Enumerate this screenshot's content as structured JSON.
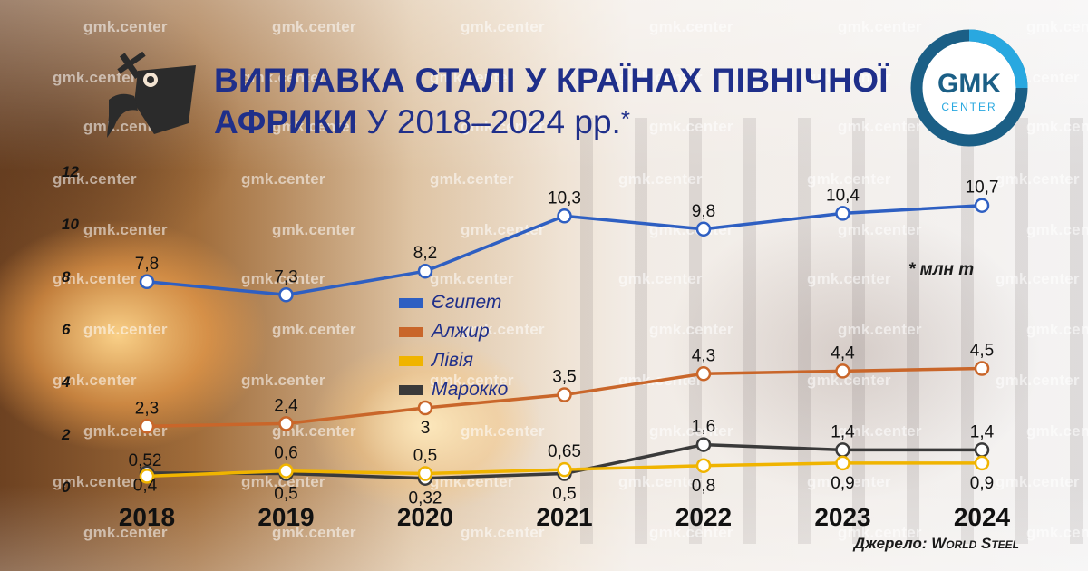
{
  "title": {
    "line1": "ВИПЛАВКА СТАЛІ У КРАЇНАХ ПІВНІЧНОЇ",
    "line2_bold": "АФРИКИ",
    "line2_rest": " У 2018–2024 рр.",
    "asterisk": "*"
  },
  "logo": {
    "top": "GMK",
    "bottom": "CENTER",
    "ring_color": "#1b5f86",
    "accent_color": "#29a8e0"
  },
  "watermark": "gmk.center",
  "unit_note": "* млн т",
  "source": {
    "prefix": "Джерело: ",
    "name": "World Steel"
  },
  "icon": "ladle-icon",
  "colors": {
    "title": "#1f2f8a",
    "egypt": "#2e5fc2",
    "algeria": "#c9662a",
    "libya": "#f0b400",
    "morocco": "#3a3a3a"
  },
  "chart_data": {
    "type": "line",
    "x": [
      "2018",
      "2019",
      "2020",
      "2021",
      "2022",
      "2023",
      "2024"
    ],
    "yticks": [
      "0",
      "2",
      "4",
      "6",
      "8",
      "10",
      "12"
    ],
    "ylim": [
      0,
      12
    ],
    "grid": false,
    "legend_position": "center",
    "series": [
      {
        "name": "Єгипет",
        "color": "#2e5fc2",
        "values": [
          7.8,
          7.3,
          8.2,
          10.3,
          9.8,
          10.4,
          10.7
        ],
        "labels": [
          "7,8",
          "7,3",
          "8,2",
          "10,3",
          "9,8",
          "10,4",
          "10,7"
        ],
        "pos": [
          "above",
          "above",
          "above",
          "above",
          "above",
          "above",
          "above"
        ]
      },
      {
        "name": "Алжир",
        "color": "#c9662a",
        "values": [
          2.3,
          2.4,
          3.0,
          3.5,
          4.3,
          4.4,
          4.5
        ],
        "labels": [
          "2,3",
          "2,4",
          "3",
          "3,5",
          "4,3",
          "4,4",
          "4,5"
        ],
        "pos": [
          "above",
          "above",
          "below",
          "above",
          "above",
          "above",
          "above"
        ]
      },
      {
        "name": "Лівія",
        "color": "#f0b400",
        "values": [
          0.4,
          0.6,
          0.5,
          0.65,
          0.8,
          0.9,
          0.9
        ],
        "labels": [
          "0,4",
          "0,6",
          "0,5",
          "0,65",
          "0,8",
          "0,9",
          "0,9"
        ],
        "pos": [
          "left",
          "above",
          "above",
          "above",
          "below",
          "below",
          "below"
        ]
      },
      {
        "name": "Марокко",
        "color": "#3a3a3a",
        "values": [
          0.52,
          0.5,
          0.32,
          0.5,
          1.6,
          1.4,
          1.4
        ],
        "labels": [
          "0,52",
          "0,5",
          "0,32",
          "0,5",
          "1,6",
          "1,4",
          "1,4"
        ],
        "pos": [
          "left",
          "below",
          "below",
          "below",
          "above",
          "above",
          "above"
        ]
      }
    ]
  }
}
